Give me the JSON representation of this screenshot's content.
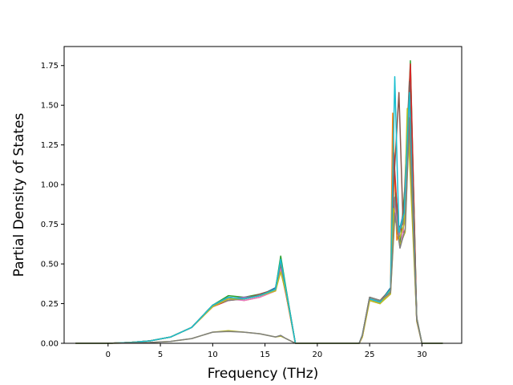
{
  "chart_data": {
    "type": "line",
    "title": "",
    "xlabel": "Frequency (THz)",
    "ylabel": "Partial Density of States",
    "xlim": [
      -4.2,
      33.8
    ],
    "ylim": [
      0,
      1.87
    ],
    "x_ticks": [
      0,
      5,
      10,
      15,
      20,
      25,
      30
    ],
    "y_ticks": [
      0.0,
      0.25,
      0.5,
      0.75,
      1.0,
      1.25,
      1.5,
      1.75
    ],
    "x_tick_labels": [
      "0",
      "5",
      "10",
      "15",
      "20",
      "25",
      "30"
    ],
    "y_tick_labels": [
      "0.00",
      "0.25",
      "0.50",
      "0.75",
      "1.00",
      "1.25",
      "1.50",
      "1.75"
    ],
    "grid": false,
    "legend": "none",
    "series_note": "",
    "series": [
      {
        "color": "#1f77b4",
        "x": [
          -3.1,
          0,
          2,
          4,
          6,
          8,
          10,
          11.5,
          13,
          14.5,
          16,
          16.5,
          17,
          17.9,
          18.5,
          24,
          24.3,
          25,
          26,
          27,
          27.4,
          27.8,
          28.5,
          28.9,
          29.5,
          30,
          32
        ],
        "y": [
          0,
          0,
          0.005,
          0.015,
          0.04,
          0.1,
          0.24,
          0.28,
          0.28,
          0.3,
          0.35,
          0.52,
          0.34,
          0,
          0,
          0,
          0.05,
          0.28,
          0.26,
          0.35,
          0.85,
          0.7,
          0.9,
          1.7,
          0.15,
          0,
          0
        ]
      },
      {
        "color": "#ff7f0e",
        "x": [
          -3.1,
          0,
          2,
          4,
          6,
          8,
          10,
          11.5,
          13,
          14.5,
          16,
          16.5,
          17,
          17.9,
          18.5,
          24,
          24.3,
          25,
          26,
          27,
          27.2,
          27.6,
          28.3,
          28.8,
          29.5,
          30,
          32
        ],
        "y": [
          0,
          0,
          0.005,
          0.015,
          0.04,
          0.1,
          0.23,
          0.29,
          0.27,
          0.29,
          0.33,
          0.48,
          0.32,
          0,
          0,
          0,
          0.04,
          0.27,
          0.25,
          0.33,
          1.45,
          0.65,
          0.8,
          1.55,
          0.14,
          0,
          0
        ]
      },
      {
        "color": "#2ca02c",
        "x": [
          -3.1,
          0,
          2,
          4,
          6,
          8,
          10,
          11.5,
          13,
          14.5,
          16,
          16.5,
          17,
          17.9,
          18.5,
          24,
          24.3,
          25,
          26,
          27,
          27.5,
          27.9,
          28.4,
          28.9,
          29.5,
          30,
          32
        ],
        "y": [
          0,
          0,
          0.005,
          0.015,
          0.04,
          0.1,
          0.24,
          0.3,
          0.29,
          0.31,
          0.34,
          0.55,
          0.35,
          0,
          0,
          0,
          0.05,
          0.29,
          0.27,
          0.34,
          0.95,
          0.62,
          1.0,
          1.78,
          0.16,
          0,
          0
        ]
      },
      {
        "color": "#d62728",
        "x": [
          -3.1,
          0,
          2,
          4,
          6,
          8,
          10,
          11.5,
          13,
          14.5,
          16,
          16.5,
          17,
          17.9,
          18.5,
          24,
          24.3,
          25,
          26,
          27,
          27.3,
          27.7,
          28.2,
          28.9,
          29.5,
          30,
          32
        ],
        "y": [
          0,
          0,
          0.005,
          0.015,
          0.04,
          0.1,
          0.23,
          0.27,
          0.28,
          0.3,
          0.33,
          0.46,
          0.31,
          0,
          0,
          0,
          0.04,
          0.28,
          0.26,
          0.32,
          1.2,
          0.75,
          0.7,
          1.76,
          0.15,
          0,
          0
        ]
      },
      {
        "color": "#9467bd",
        "x": [
          -3.1,
          0,
          2,
          4,
          6,
          8,
          10,
          11.5,
          13,
          14.5,
          16,
          16.5,
          17,
          17.9,
          18.5,
          24,
          24.3,
          25,
          26,
          27,
          27.4,
          27.8,
          28.3,
          28.8,
          29.5,
          30,
          32
        ],
        "y": [
          0,
          0,
          0.005,
          0.015,
          0.04,
          0.1,
          0.24,
          0.28,
          0.29,
          0.3,
          0.34,
          0.5,
          0.33,
          0,
          0,
          0,
          0.05,
          0.28,
          0.26,
          0.33,
          0.9,
          0.68,
          0.85,
          1.6,
          0.15,
          0,
          0
        ]
      },
      {
        "color": "#8c564b",
        "x": [
          -3.1,
          0,
          2,
          4,
          6,
          8,
          10,
          11.5,
          13,
          14.5,
          16,
          16.5,
          17,
          17.9,
          18.5,
          24,
          24.3,
          25,
          26,
          27,
          27.3,
          27.8,
          28.2,
          28.8,
          29.5,
          30,
          32
        ],
        "y": [
          0,
          0,
          0.005,
          0.015,
          0.04,
          0.1,
          0.24,
          0.29,
          0.28,
          0.31,
          0.34,
          0.49,
          0.34,
          0,
          0,
          0,
          0.05,
          0.29,
          0.27,
          0.34,
          1.0,
          1.58,
          0.75,
          1.65,
          0.16,
          0,
          0
        ]
      },
      {
        "color": "#e377c2",
        "x": [
          -3.1,
          0,
          2,
          4,
          6,
          8,
          10,
          11.5,
          13,
          14.5,
          16,
          16.5,
          17,
          17.9,
          18.5,
          24,
          24.3,
          25,
          26,
          27,
          27.4,
          27.9,
          28.4,
          28.8,
          29.5,
          30,
          32
        ],
        "y": [
          0,
          0,
          0.005,
          0.015,
          0.04,
          0.1,
          0.23,
          0.28,
          0.27,
          0.29,
          0.33,
          0.47,
          0.32,
          0,
          0,
          0,
          0.04,
          0.27,
          0.25,
          0.32,
          0.88,
          0.6,
          0.8,
          1.5,
          0.14,
          0,
          0
        ]
      },
      {
        "color": "#7f7f7f",
        "x": [
          -3.1,
          0,
          2,
          4,
          6,
          8,
          10,
          11.5,
          13,
          14.5,
          16,
          16.5,
          17,
          17.9,
          18.5,
          24,
          24.3,
          25,
          26,
          27,
          27.4,
          27.8,
          28.3,
          28.7,
          29.5,
          30,
          32
        ],
        "y": [
          0,
          0,
          0.005,
          0.015,
          0.04,
          0.1,
          0.24,
          0.27,
          0.28,
          0.3,
          0.34,
          0.5,
          0.33,
          0,
          0,
          0,
          0.05,
          0.28,
          0.26,
          0.33,
          0.92,
          0.7,
          0.78,
          1.45,
          0.15,
          0,
          0
        ]
      },
      {
        "color": "#bcbd22",
        "x": [
          -3.1,
          0,
          2,
          4,
          6,
          8,
          10,
          11.5,
          13,
          14.5,
          16,
          16.5,
          17,
          17.9,
          18.5,
          24,
          24.3,
          25,
          26,
          27,
          27.3,
          27.8,
          28.3,
          28.6,
          29.5,
          30,
          32
        ],
        "y": [
          0,
          0,
          0.005,
          0.015,
          0.04,
          0.1,
          0.23,
          0.28,
          0.28,
          0.3,
          0.33,
          0.45,
          0.32,
          0,
          0,
          0,
          0.04,
          0.27,
          0.25,
          0.33,
          0.85,
          0.65,
          0.75,
          1.48,
          0.15,
          0,
          0
        ]
      },
      {
        "color": "#17becf",
        "x": [
          -3.1,
          0,
          2,
          4,
          6,
          8,
          10,
          11.5,
          13,
          14.5,
          16,
          16.5,
          17,
          17.9,
          18.5,
          24,
          24.3,
          25,
          26,
          27,
          27.4,
          27.8,
          28.3,
          28.8,
          29.5,
          30,
          32
        ],
        "y": [
          0,
          0,
          0.005,
          0.015,
          0.04,
          0.1,
          0.24,
          0.29,
          0.28,
          0.3,
          0.34,
          0.53,
          0.34,
          0,
          0,
          0,
          0.05,
          0.28,
          0.26,
          0.34,
          1.68,
          0.7,
          0.82,
          1.58,
          0.15,
          0,
          0
        ]
      },
      {
        "color": "#bcbd22",
        "x": [
          -3.1,
          0,
          2,
          4,
          6,
          8,
          10,
          11.5,
          13,
          14.5,
          16,
          16.5,
          17,
          17.9,
          18.5,
          24,
          24.3,
          25,
          26,
          27,
          27.4,
          27.9,
          28.4,
          28.8,
          29.5,
          30,
          32
        ],
        "y": [
          0,
          0,
          0.002,
          0.005,
          0.012,
          0.03,
          0.07,
          0.08,
          0.07,
          0.06,
          0.04,
          0.045,
          0.03,
          0,
          0,
          0,
          0.04,
          0.27,
          0.25,
          0.31,
          0.8,
          0.62,
          0.7,
          1.4,
          0.14,
          0,
          0
        ]
      },
      {
        "color": "#7f7f7f",
        "x": [
          -3.1,
          0,
          2,
          4,
          6,
          8,
          10,
          11.5,
          13,
          14.5,
          16,
          16.5,
          17,
          17.9,
          18.5,
          24,
          24.3,
          25,
          26,
          27,
          27.4,
          27.9,
          28.4,
          28.8,
          29.5,
          30,
          32
        ],
        "y": [
          0,
          0,
          0.002,
          0.005,
          0.012,
          0.03,
          0.07,
          0.075,
          0.07,
          0.06,
          0.04,
          0.05,
          0.03,
          0,
          0,
          0,
          0.05,
          0.29,
          0.27,
          0.32,
          0.82,
          0.6,
          0.72,
          1.42,
          0.15,
          0,
          0
        ]
      }
    ]
  }
}
